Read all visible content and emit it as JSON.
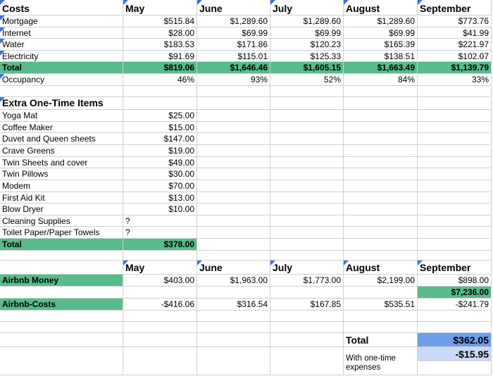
{
  "colors": {
    "green": "#57bb8a",
    "blue_dark": "#6d9eeb",
    "blue_light": "#c9daf8",
    "note_marker": "#3b73d6",
    "grid": "#d0d0d0"
  },
  "costs": {
    "header": {
      "label": "Costs",
      "months": [
        "May",
        "June",
        "July",
        "August",
        "September"
      ]
    },
    "rows": [
      {
        "label": "Mortgage",
        "values": [
          "$515.84",
          "$1,289.60",
          "$1,289.60",
          "$1,289.60",
          "$773.76"
        ]
      },
      {
        "label": "Internet",
        "values": [
          "$28.00",
          "$69.99",
          "$69.99",
          "$69.99",
          "$41.99"
        ]
      },
      {
        "label": "Water",
        "values": [
          "$183.53",
          "$171.86",
          "$120.23",
          "$165.39",
          "$221.97"
        ]
      },
      {
        "label": "Electricity",
        "values": [
          "$91.69",
          "$115.01",
          "$125.33",
          "$138.51",
          "$102.07"
        ]
      }
    ],
    "total": {
      "label": "Total",
      "values": [
        "$819.06",
        "$1,646.46",
        "$1,605.15",
        "$1,663.49",
        "$1,139.79"
      ]
    },
    "occupancy": {
      "label": "Occupancy",
      "values": [
        "46%",
        "93%",
        "52%",
        "84%",
        "33%"
      ]
    }
  },
  "extras": {
    "header": "Extra One-Time Items",
    "items": [
      {
        "label": "Yoga Mat",
        "note": "",
        "value": "$25.00"
      },
      {
        "label": "Coffee Maker",
        "note": "",
        "value": "$15.00"
      },
      {
        "label": "Duvet and Queen sheets",
        "note": "",
        "value": "$147.00"
      },
      {
        "label": "Crave Greens",
        "note": "",
        "value": "$19.00"
      },
      {
        "label": "Twin Sheets and cover",
        "note": "",
        "value": "$49.00"
      },
      {
        "label": "Twin Pillows",
        "note": "",
        "value": "$30.00"
      },
      {
        "label": "Modem",
        "note": "",
        "value": "$70.00"
      },
      {
        "label": "First Aid Kit",
        "note": "",
        "value": "$13.00"
      },
      {
        "label": "Blow Dryer",
        "note": "",
        "value": "$10.00"
      },
      {
        "label": "Cleaning Supplies",
        "note": "?",
        "value": ""
      },
      {
        "label": "Toilet Paper/Paper Towels",
        "note": "?",
        "value": ""
      }
    ],
    "total": {
      "label": "Total",
      "value": "$378.00"
    }
  },
  "airbnb": {
    "months": [
      "May",
      "June",
      "July",
      "August",
      "September"
    ],
    "money": {
      "label": "Airbnb Money",
      "values": [
        "$403.00",
        "$1,963.00",
        "$1,773.00",
        "$2,199.00",
        "$898.00"
      ]
    },
    "money_sum": "$7,236.00",
    "costs": {
      "label": "Airbnb-Costs",
      "values": [
        "-$416.06",
        "$316.54",
        "$167.85",
        "$535.51",
        "-$241.79"
      ]
    }
  },
  "summary": {
    "total_label": "Total",
    "total_value": "$362.05",
    "onetime_label": "With one-time expenses",
    "onetime_value": "-$15.95"
  }
}
